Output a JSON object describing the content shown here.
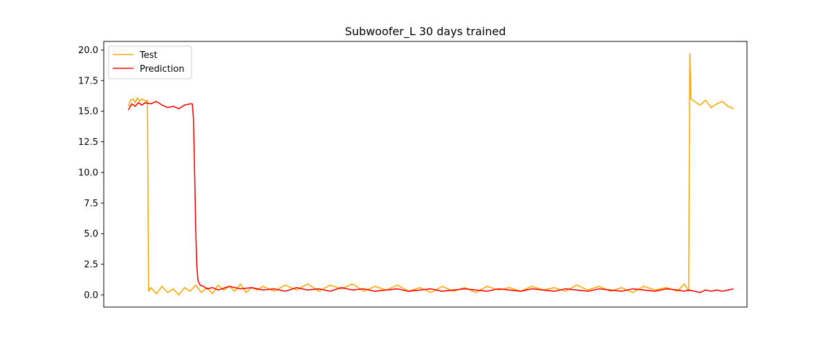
{
  "chart_data": {
    "type": "line",
    "title": "Subwoofer_L 30 days trained",
    "xlabel": "",
    "ylabel": "",
    "ylim": [
      -0.99,
      20.7
    ],
    "xlim": [
      -22,
      552
    ],
    "x_ticks_visible": false,
    "y_ticks": [
      0.0,
      2.5,
      5.0,
      7.5,
      10.0,
      12.5,
      15.0,
      17.5,
      20.0
    ],
    "y_tick_labels": [
      "0.0",
      "2.5",
      "5.0",
      "7.5",
      "10.0",
      "12.5",
      "15.0",
      "17.5",
      "20.0"
    ],
    "grid": false,
    "legend": "top-left",
    "series": [
      {
        "name": "Test",
        "color": "#ffa500",
        "x": [
          0,
          2,
          4,
          6,
          8,
          10,
          12,
          14,
          16,
          17,
          18,
          20,
          25,
          30,
          35,
          40,
          45,
          50,
          55,
          60,
          65,
          70,
          75,
          80,
          85,
          90,
          95,
          100,
          105,
          110,
          115,
          120,
          130,
          140,
          150,
          160,
          170,
          180,
          190,
          200,
          210,
          220,
          230,
          240,
          250,
          260,
          270,
          280,
          290,
          300,
          310,
          320,
          330,
          340,
          350,
          360,
          370,
          380,
          390,
          400,
          410,
          420,
          430,
          440,
          450,
          460,
          470,
          480,
          490,
          496,
          500,
          501,
          502,
          505,
          510,
          515,
          520,
          525,
          530,
          535,
          540
        ],
        "values": [
          15.4,
          15.9,
          16.0,
          15.7,
          16.1,
          15.8,
          16.0,
          15.9,
          15.8,
          15.9,
          0.3,
          0.6,
          0.1,
          0.7,
          0.2,
          0.5,
          0.0,
          0.6,
          0.3,
          0.8,
          0.2,
          0.6,
          0.1,
          0.8,
          0.4,
          0.7,
          0.3,
          0.9,
          0.2,
          0.6,
          0.4,
          0.7,
          0.3,
          0.8,
          0.4,
          0.9,
          0.3,
          0.8,
          0.5,
          0.9,
          0.3,
          0.7,
          0.4,
          0.8,
          0.3,
          0.6,
          0.2,
          0.7,
          0.3,
          0.6,
          0.2,
          0.7,
          0.4,
          0.6,
          0.3,
          0.7,
          0.4,
          0.6,
          0.3,
          0.8,
          0.4,
          0.7,
          0.3,
          0.6,
          0.2,
          0.7,
          0.4,
          0.6,
          0.3,
          0.9,
          0.3,
          19.7,
          16.0,
          15.8,
          15.5,
          15.9,
          15.3,
          15.6,
          15.8,
          15.4,
          15.2
        ]
      },
      {
        "name": "Prediction",
        "color": "#ff0000",
        "x": [
          0,
          3,
          6,
          9,
          12,
          15,
          20,
          25,
          30,
          35,
          40,
          45,
          50,
          55,
          57,
          58,
          59,
          60,
          61,
          62,
          64,
          67,
          70,
          75,
          80,
          90,
          100,
          110,
          120,
          130,
          140,
          150,
          160,
          170,
          180,
          190,
          200,
          210,
          220,
          230,
          240,
          250,
          260,
          270,
          280,
          290,
          300,
          310,
          320,
          330,
          340,
          350,
          360,
          370,
          380,
          390,
          400,
          410,
          420,
          430,
          440,
          450,
          460,
          470,
          480,
          490,
          496,
          500,
          505,
          510,
          515,
          520,
          525,
          530,
          535,
          540
        ],
        "values": [
          15.1,
          15.6,
          15.4,
          15.7,
          15.5,
          15.7,
          15.6,
          15.8,
          15.5,
          15.3,
          15.4,
          15.2,
          15.5,
          15.6,
          15.6,
          14.5,
          10.5,
          5.5,
          2.4,
          1.2,
          0.8,
          0.7,
          0.5,
          0.6,
          0.4,
          0.7,
          0.5,
          0.6,
          0.4,
          0.5,
          0.3,
          0.6,
          0.4,
          0.5,
          0.3,
          0.6,
          0.4,
          0.5,
          0.3,
          0.4,
          0.5,
          0.3,
          0.4,
          0.5,
          0.3,
          0.4,
          0.5,
          0.4,
          0.3,
          0.5,
          0.4,
          0.3,
          0.5,
          0.4,
          0.3,
          0.5,
          0.4,
          0.3,
          0.5,
          0.4,
          0.3,
          0.5,
          0.4,
          0.3,
          0.5,
          0.4,
          0.3,
          0.4,
          0.3,
          0.2,
          0.4,
          0.3,
          0.4,
          0.3,
          0.4,
          0.5
        ]
      }
    ]
  }
}
